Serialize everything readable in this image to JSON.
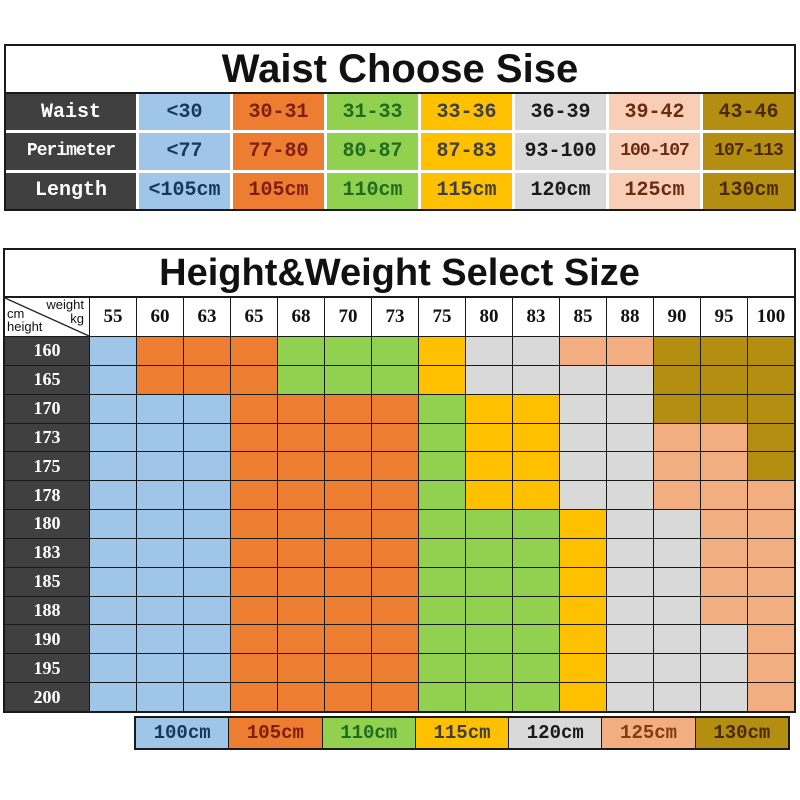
{
  "colors": {
    "palette": {
      "blue": "#9fc5e8",
      "orange": "#ed7d31",
      "green": "#92d050",
      "yellow": "#ffc000",
      "gray": "#d9d9d9",
      "peach": "#f2ad80",
      "peachLight": "#f8cfb6",
      "gold": "#b48e10",
      "dark": "#404040",
      "border": "#1a1a1a"
    },
    "text_on": {
      "blue": "#17375e",
      "orange": "#7f1d11",
      "green": "#1f6b1f",
      "yellow": "#3f3f3f",
      "gray": "#1a1a1a",
      "peach": "#843c0c",
      "peachLight": "#6b2a12",
      "gold": "#4a2a05",
      "dark": "#ffffff"
    }
  },
  "waist_table": {
    "title": "Waist Choose Sise",
    "column_colors": [
      "blue",
      "orange",
      "green",
      "yellow",
      "gray",
      "peachLight",
      "gold"
    ],
    "rows": [
      {
        "label": "Waist",
        "values": [
          "<30",
          "30-31",
          "31-33",
          "33-36",
          "36-39",
          "39-42",
          "43-46"
        ]
      },
      {
        "label": "Perimeter",
        "values": [
          "<77",
          "77-80",
          "80-87",
          "87-83",
          "93-100",
          "100-107",
          "107-113"
        ]
      },
      {
        "label": "Length",
        "values": [
          "<105cm",
          "105cm",
          "110cm",
          "115cm",
          "120cm",
          "125cm",
          "130cm"
        ]
      }
    ]
  },
  "size_table": {
    "title": "Height&Weight Select Size",
    "corner": {
      "top_right": "weight",
      "unit_right": "kg",
      "unit_left": "cm",
      "bottom_left": "height"
    },
    "weight_columns": [
      "55",
      "60",
      "63",
      "65",
      "68",
      "70",
      "73",
      "75",
      "80",
      "83",
      "85",
      "88",
      "90",
      "95",
      "100"
    ],
    "height_rows": [
      "160",
      "165",
      "170",
      "173",
      "175",
      "178",
      "180",
      "183",
      "185",
      "188",
      "190",
      "195",
      "200"
    ],
    "matrix": [
      [
        "blue",
        "orange",
        "orange",
        "orange",
        "green",
        "green",
        "green",
        "yellow",
        "gray",
        "gray",
        "peach",
        "peach",
        "gold",
        "gold",
        "gold"
      ],
      [
        "blue",
        "orange",
        "orange",
        "orange",
        "green",
        "green",
        "green",
        "yellow",
        "gray",
        "gray",
        "gray",
        "gray",
        "gold",
        "gold",
        "gold"
      ],
      [
        "blue",
        "blue",
        "blue",
        "orange",
        "orange",
        "orange",
        "orange",
        "green",
        "yellow",
        "yellow",
        "gray",
        "gray",
        "gold",
        "gold",
        "gold"
      ],
      [
        "blue",
        "blue",
        "blue",
        "orange",
        "orange",
        "orange",
        "orange",
        "green",
        "yellow",
        "yellow",
        "gray",
        "gray",
        "peach",
        "peach",
        "gold"
      ],
      [
        "blue",
        "blue",
        "blue",
        "orange",
        "orange",
        "orange",
        "orange",
        "green",
        "yellow",
        "yellow",
        "gray",
        "gray",
        "peach",
        "peach",
        "gold"
      ],
      [
        "blue",
        "blue",
        "blue",
        "orange",
        "orange",
        "orange",
        "orange",
        "green",
        "yellow",
        "yellow",
        "gray",
        "gray",
        "peach",
        "peach",
        "peach"
      ],
      [
        "blue",
        "blue",
        "blue",
        "orange",
        "orange",
        "orange",
        "orange",
        "green",
        "green",
        "green",
        "yellow",
        "gray",
        "gray",
        "peach",
        "peach"
      ],
      [
        "blue",
        "blue",
        "blue",
        "orange",
        "orange",
        "orange",
        "orange",
        "green",
        "green",
        "green",
        "yellow",
        "gray",
        "gray",
        "peach",
        "peach"
      ],
      [
        "blue",
        "blue",
        "blue",
        "orange",
        "orange",
        "orange",
        "orange",
        "green",
        "green",
        "green",
        "yellow",
        "gray",
        "gray",
        "peach",
        "peach"
      ],
      [
        "blue",
        "blue",
        "blue",
        "orange",
        "orange",
        "orange",
        "orange",
        "green",
        "green",
        "green",
        "yellow",
        "gray",
        "gray",
        "peach",
        "peach"
      ],
      [
        "blue",
        "blue",
        "blue",
        "orange",
        "orange",
        "orange",
        "orange",
        "green",
        "green",
        "green",
        "yellow",
        "gray",
        "gray",
        "gray",
        "peach"
      ],
      [
        "blue",
        "blue",
        "blue",
        "orange",
        "orange",
        "orange",
        "orange",
        "green",
        "green",
        "green",
        "yellow",
        "gray",
        "gray",
        "gray",
        "peach"
      ],
      [
        "blue",
        "blue",
        "blue",
        "orange",
        "orange",
        "orange",
        "orange",
        "green",
        "green",
        "green",
        "yellow",
        "gray",
        "gray",
        "gray",
        "peach"
      ]
    ]
  },
  "legend": {
    "items": [
      {
        "label": "100cm",
        "color": "blue"
      },
      {
        "label": "105cm",
        "color": "orange"
      },
      {
        "label": "110cm",
        "color": "green"
      },
      {
        "label": "115cm",
        "color": "yellow"
      },
      {
        "label": "120cm",
        "color": "gray"
      },
      {
        "label": "125cm",
        "color": "peach"
      },
      {
        "label": "130cm",
        "color": "gold"
      }
    ]
  },
  "chart_data": [
    {
      "type": "table",
      "title": "Waist Choose Sise",
      "row_labels": [
        "Waist",
        "Perimeter",
        "Length"
      ],
      "rows": [
        [
          "<30",
          "30-31",
          "31-33",
          "33-36",
          "36-39",
          "39-42",
          "43-46"
        ],
        [
          "<77",
          "77-80",
          "80-87",
          "87-83",
          "93-100",
          "100-107",
          "107-113"
        ],
        [
          "<105cm",
          "105cm",
          "110cm",
          "115cm",
          "120cm",
          "125cm",
          "130cm"
        ]
      ]
    },
    {
      "type": "heatmap",
      "title": "Height&Weight Select Size",
      "xlabel": "weight kg",
      "ylabel": "cm height",
      "x": [
        55,
        60,
        63,
        65,
        68,
        70,
        73,
        75,
        80,
        83,
        85,
        88,
        90,
        95,
        100
      ],
      "y": [
        160,
        165,
        170,
        173,
        175,
        178,
        180,
        183,
        185,
        188,
        190,
        195,
        200
      ],
      "legend": {
        "blue": "100cm",
        "orange": "105cm",
        "green": "110cm",
        "yellow": "115cm",
        "gray": "120cm",
        "peach": "125cm",
        "gold": "130cm"
      },
      "values": [
        [
          "100cm",
          "105cm",
          "105cm",
          "105cm",
          "110cm",
          "110cm",
          "110cm",
          "115cm",
          "120cm",
          "120cm",
          "125cm",
          "125cm",
          "130cm",
          "130cm",
          "130cm"
        ],
        [
          "100cm",
          "105cm",
          "105cm",
          "105cm",
          "110cm",
          "110cm",
          "110cm",
          "115cm",
          "120cm",
          "120cm",
          "120cm",
          "120cm",
          "130cm",
          "130cm",
          "130cm"
        ],
        [
          "100cm",
          "100cm",
          "100cm",
          "105cm",
          "105cm",
          "105cm",
          "105cm",
          "110cm",
          "115cm",
          "115cm",
          "120cm",
          "120cm",
          "130cm",
          "130cm",
          "130cm"
        ],
        [
          "100cm",
          "100cm",
          "100cm",
          "105cm",
          "105cm",
          "105cm",
          "105cm",
          "110cm",
          "115cm",
          "115cm",
          "120cm",
          "120cm",
          "125cm",
          "125cm",
          "130cm"
        ],
        [
          "100cm",
          "100cm",
          "100cm",
          "105cm",
          "105cm",
          "105cm",
          "105cm",
          "110cm",
          "115cm",
          "115cm",
          "120cm",
          "120cm",
          "125cm",
          "125cm",
          "130cm"
        ],
        [
          "100cm",
          "100cm",
          "100cm",
          "105cm",
          "105cm",
          "105cm",
          "105cm",
          "110cm",
          "115cm",
          "115cm",
          "120cm",
          "120cm",
          "125cm",
          "125cm",
          "125cm"
        ],
        [
          "100cm",
          "100cm",
          "100cm",
          "105cm",
          "105cm",
          "105cm",
          "105cm",
          "110cm",
          "110cm",
          "110cm",
          "115cm",
          "120cm",
          "120cm",
          "125cm",
          "125cm"
        ],
        [
          "100cm",
          "100cm",
          "100cm",
          "105cm",
          "105cm",
          "105cm",
          "105cm",
          "110cm",
          "110cm",
          "110cm",
          "115cm",
          "120cm",
          "120cm",
          "125cm",
          "125cm"
        ],
        [
          "100cm",
          "100cm",
          "100cm",
          "105cm",
          "105cm",
          "105cm",
          "105cm",
          "110cm",
          "110cm",
          "110cm",
          "115cm",
          "120cm",
          "120cm",
          "125cm",
          "125cm"
        ],
        [
          "100cm",
          "100cm",
          "100cm",
          "105cm",
          "105cm",
          "105cm",
          "105cm",
          "110cm",
          "110cm",
          "110cm",
          "115cm",
          "120cm",
          "120cm",
          "125cm",
          "125cm"
        ],
        [
          "100cm",
          "100cm",
          "100cm",
          "105cm",
          "105cm",
          "105cm",
          "105cm",
          "110cm",
          "110cm",
          "110cm",
          "115cm",
          "120cm",
          "120cm",
          "120cm",
          "125cm"
        ],
        [
          "100cm",
          "100cm",
          "100cm",
          "105cm",
          "105cm",
          "105cm",
          "105cm",
          "110cm",
          "110cm",
          "110cm",
          "115cm",
          "120cm",
          "120cm",
          "120cm",
          "125cm"
        ],
        [
          "100cm",
          "100cm",
          "100cm",
          "105cm",
          "105cm",
          "105cm",
          "105cm",
          "110cm",
          "110cm",
          "110cm",
          "115cm",
          "120cm",
          "120cm",
          "120cm",
          "125cm"
        ]
      ]
    }
  ]
}
